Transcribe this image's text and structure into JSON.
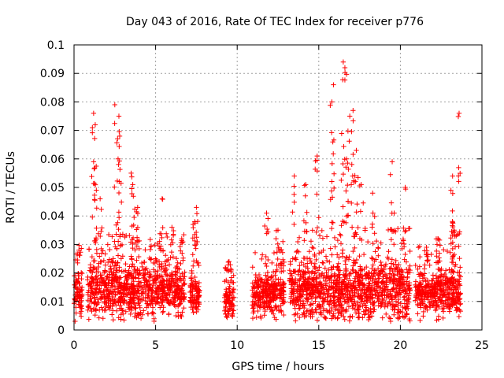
{
  "chart_data": {
    "type": "scatter",
    "title": "Day 043 of 2016, Rate Of TEC Index for receiver p776",
    "xlabel": "GPS time / hours",
    "ylabel": "ROTI / TECUs",
    "xlim": [
      0,
      25
    ],
    "ylim": [
      0,
      0.1
    ],
    "xticks": [
      0,
      5,
      10,
      15,
      20,
      25
    ],
    "xtick_labels": [
      "0",
      "5",
      "10",
      "15",
      "20",
      "25"
    ],
    "yticks": [
      0,
      0.01,
      0.02,
      0.03,
      0.04,
      0.05,
      0.06,
      0.07,
      0.08,
      0.09,
      0.1
    ],
    "ytick_labels": [
      "0",
      "0.01",
      "0.02",
      "0.03",
      "0.04",
      "0.05",
      "0.06",
      "0.07",
      "0.08",
      "0.09",
      "0.1"
    ],
    "grid": true,
    "marker": "+",
    "series": [
      {
        "name": "ROTI",
        "color": "#ff0000",
        "segments": [
          {
            "x0": 0.0,
            "x1": 0.5,
            "base": 0.013,
            "spread": 0.008,
            "peaks": [
              [
                0.3,
                0.028
              ]
            ]
          },
          {
            "x0": 0.8,
            "x1": 6.8,
            "base": 0.014,
            "spread": 0.009,
            "peaks": [
              [
                1.2,
                0.076
              ],
              [
                1.3,
                0.072
              ],
              [
                1.2,
                0.059
              ],
              [
                1.6,
                0.046
              ],
              [
                2.5,
                0.079
              ],
              [
                2.75,
                0.075
              ],
              [
                2.8,
                0.068
              ],
              [
                2.7,
                0.06
              ],
              [
                3.5,
                0.055
              ],
              [
                3.6,
                0.051
              ],
              [
                3.9,
                0.043
              ],
              [
                5.4,
                0.046
              ],
              [
                6.0,
                0.036
              ],
              [
                6.6,
                0.032
              ]
            ]
          },
          {
            "x0": 7.1,
            "x1": 7.7,
            "base": 0.012,
            "spread": 0.006,
            "peaks": [
              [
                7.5,
                0.043
              ],
              [
                7.4,
                0.038
              ]
            ]
          },
          {
            "x0": 9.2,
            "x1": 9.8,
            "base": 0.01,
            "spread": 0.006,
            "peaks": [
              [
                9.5,
                0.024
              ]
            ]
          },
          {
            "x0": 10.9,
            "x1": 12.9,
            "base": 0.012,
            "spread": 0.007,
            "peaks": [
              [
                11.8,
                0.041
              ],
              [
                12.5,
                0.035
              ],
              [
                12.8,
                0.031
              ]
            ]
          },
          {
            "x0": 13.2,
            "x1": 20.6,
            "base": 0.014,
            "spread": 0.01,
            "peaks": [
              [
                13.5,
                0.054
              ],
              [
                14.2,
                0.051
              ],
              [
                14.9,
                0.061
              ],
              [
                15.9,
                0.086
              ],
              [
                15.8,
                0.08
              ],
              [
                16.5,
                0.094
              ],
              [
                16.6,
                0.092
              ],
              [
                16.9,
                0.075
              ],
              [
                17.1,
                0.077
              ],
              [
                17.3,
                0.063
              ],
              [
                16.7,
                0.06
              ],
              [
                17.6,
                0.051
              ],
              [
                18.3,
                0.048
              ],
              [
                19.5,
                0.059
              ],
              [
                20.3,
                0.05
              ]
            ]
          },
          {
            "x0": 20.9,
            "x1": 23.7,
            "base": 0.013,
            "spread": 0.008,
            "peaks": [
              [
                21.6,
                0.029
              ],
              [
                22.3,
                0.032
              ],
              [
                23.2,
                0.054
              ],
              [
                23.1,
                0.049
              ],
              [
                23.6,
                0.076
              ],
              [
                23.3,
                0.035
              ]
            ]
          }
        ]
      }
    ]
  }
}
